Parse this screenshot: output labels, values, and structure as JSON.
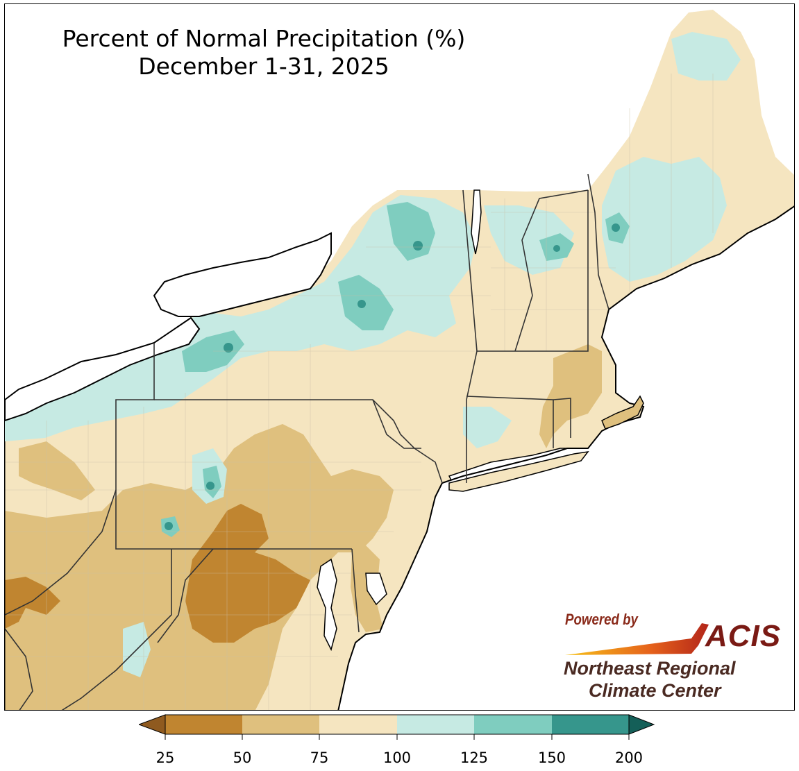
{
  "title": {
    "line1": "Percent of Normal Precipitation (%)",
    "line2": "December 1-31, 2025"
  },
  "colors": {
    "land_bg": "#f5e5c0",
    "water": "#ffffff",
    "state_border": "#333333",
    "county_border": "#b8b0a0"
  },
  "legend": {
    "ticks": [
      "25",
      "50",
      "75",
      "100",
      "125",
      "150",
      "200"
    ],
    "bins": [
      {
        "label": "<25",
        "color": "#8f5a1f"
      },
      {
        "label": "25-50",
        "color": "#c08530"
      },
      {
        "label": "50-75",
        "color": "#dfc07e"
      },
      {
        "label": "75-100",
        "color": "#f5e5c0"
      },
      {
        "label": "100-125",
        "color": "#c6eae3"
      },
      {
        "label": "125-150",
        "color": "#7fcdbf"
      },
      {
        "label": "150-200",
        "color": "#36968c"
      },
      {
        "label": ">200",
        "color": "#145f58"
      }
    ]
  },
  "credit": {
    "powered_by": "Powered by",
    "acis": "ACIS",
    "org_line1": "Northeast Regional",
    "org_line2": "Climate Center"
  }
}
